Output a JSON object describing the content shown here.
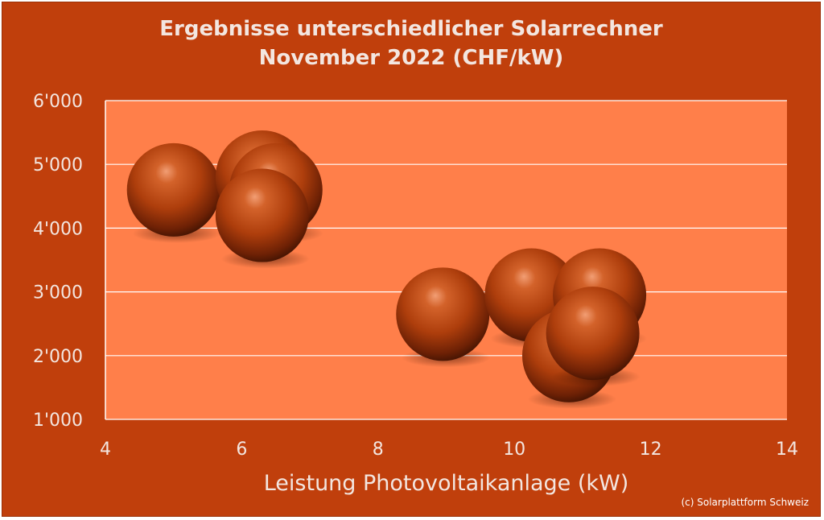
{
  "chart_data": {
    "type": "scatter",
    "title": "Ergebnisse unterschiedlicher Solarrechner",
    "subtitle": "November 2022 (CHF/kW)",
    "xlabel": "Leistung Photovoltaikanlage (kW)",
    "ylabel": "",
    "xlim": [
      4,
      14
    ],
    "ylim": [
      1000,
      6000
    ],
    "x_ticks": [
      4,
      6,
      8,
      10,
      12,
      14
    ],
    "y_ticks": [
      1000,
      2000,
      3000,
      4000,
      5000,
      6000
    ],
    "y_tick_labels": [
      "1'000",
      "2'000",
      "3'000",
      "4'000",
      "5'000",
      "6'000"
    ],
    "grid": true,
    "marker": "3d-sphere",
    "points": [
      {
        "x": 5.0,
        "y": 4600
      },
      {
        "x": 6.3,
        "y": 4800
      },
      {
        "x": 6.5,
        "y": 4600
      },
      {
        "x": 6.3,
        "y": 4200
      },
      {
        "x": 8.95,
        "y": 2650
      },
      {
        "x": 10.25,
        "y": 2950
      },
      {
        "x": 11.25,
        "y": 2950
      },
      {
        "x": 10.8,
        "y": 2000
      },
      {
        "x": 11.15,
        "y": 2350
      }
    ]
  },
  "credit": "(c) Solarplattform Schweiz",
  "colors": {
    "background": "#c03f0c",
    "plot_area": "#ff7f4a",
    "gridline": "#ffffff",
    "text": "#f3e6e0",
    "bubble": "#b9400a"
  }
}
